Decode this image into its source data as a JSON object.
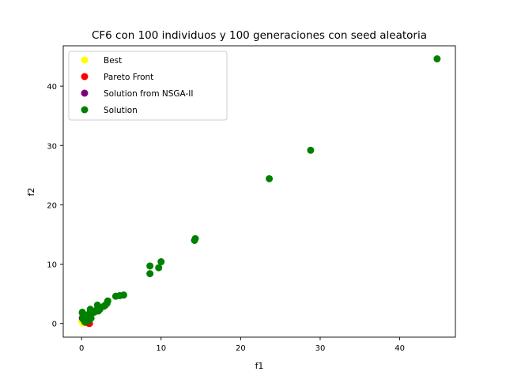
{
  "chart_data": {
    "type": "scatter",
    "title": "CF6 con 100 individuos y 100 generaciones con seed aleatoria",
    "xlabel": "f1",
    "ylabel": "f2",
    "xlim": [
      -2.3,
      47.0
    ],
    "ylim": [
      -2.3,
      46.8
    ],
    "x_ticks": [
      0,
      10,
      20,
      30,
      40
    ],
    "y_ticks": [
      0,
      10,
      20,
      30,
      40
    ],
    "grid": false,
    "legend_position": "top-left",
    "series": [
      {
        "name": "Best",
        "color": "#ffff00",
        "x": [
          0.05,
          0.15,
          0.25,
          0.1,
          0.35
        ],
        "y": [
          0.35,
          0.15,
          0.05,
          0.6,
          0.25
        ]
      },
      {
        "name": "Pareto Front",
        "color": "#ff0000",
        "x": [
          0.3,
          0.45,
          0.6,
          0.75,
          0.9,
          1.0,
          0.5,
          0.8
        ],
        "y": [
          0.7,
          0.45,
          0.3,
          0.15,
          0.05,
          0.0,
          0.2,
          0.1
        ]
      },
      {
        "name": "Solution from NSGA-II",
        "color": "#800080",
        "x": [
          0.1,
          0.2,
          0.3,
          0.4,
          0.55,
          0.65
        ],
        "y": [
          0.9,
          0.75,
          0.6,
          0.5,
          0.4,
          0.35
        ]
      },
      {
        "name": "Solution",
        "color": "#008000",
        "x": [
          44.7,
          28.8,
          23.6,
          14.3,
          14.2,
          10.0,
          9.7,
          8.6,
          8.6,
          5.3,
          4.8,
          4.3,
          3.3,
          3.2,
          3.0,
          2.8,
          2.3,
          2.1,
          2.0,
          1.9,
          1.6,
          1.5,
          1.3,
          1.1,
          1.0,
          0.9,
          0.8,
          0.7,
          0.6,
          0.5,
          0.4,
          0.3,
          0.2,
          0.1,
          0.1,
          1.2,
          0.9,
          0.6,
          0.3,
          0.8,
          0.5,
          0.4,
          0.2
        ],
        "y": [
          44.6,
          29.2,
          24.4,
          14.3,
          14.0,
          10.4,
          9.4,
          9.7,
          8.4,
          4.8,
          4.7,
          4.6,
          3.8,
          3.4,
          3.1,
          2.9,
          2.4,
          2.1,
          3.1,
          2.3,
          1.9,
          2.0,
          1.8,
          2.4,
          1.7,
          1.4,
          1.2,
          1.0,
          0.9,
          0.8,
          1.1,
          1.5,
          1.3,
          1.8,
          1.9,
          0.9,
          0.6,
          0.5,
          0.7,
          0.4,
          0.6,
          0.3,
          0.8
        ]
      }
    ]
  }
}
